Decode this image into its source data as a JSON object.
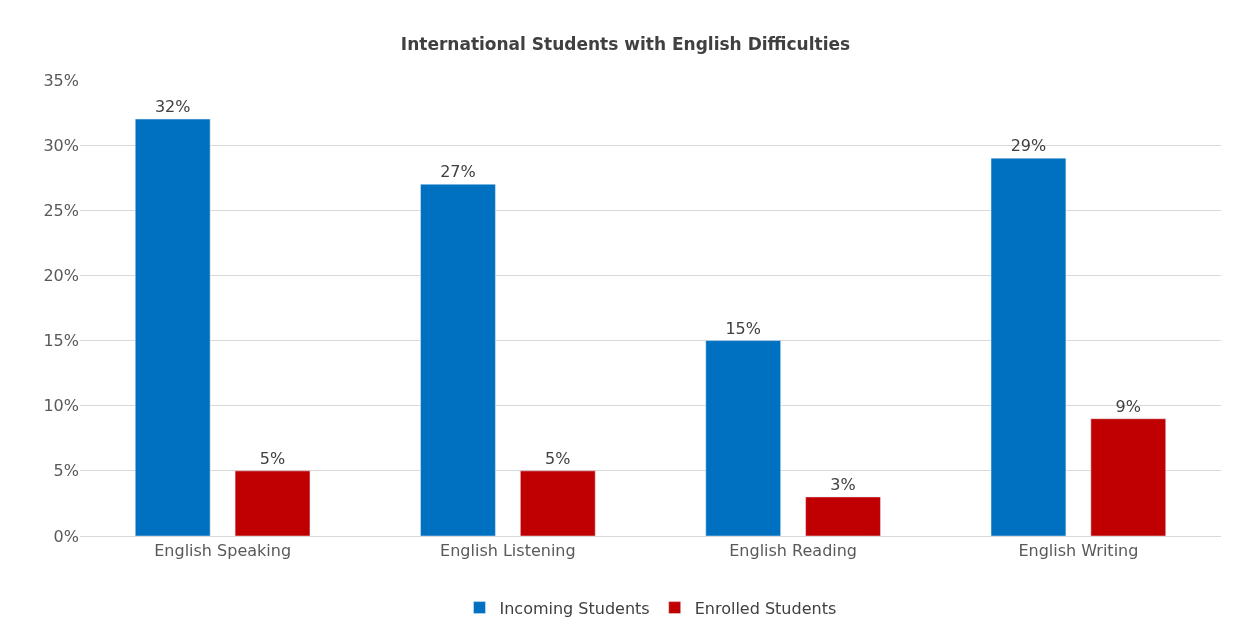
{
  "chart_data": {
    "type": "bar",
    "title": "International Students with English Difficulties",
    "categories": [
      "English Speaking",
      "English Listening",
      "English Reading",
      "English Writing"
    ],
    "series": [
      {
        "name": "Incoming Students",
        "color": "#0070c0",
        "values": [
          32,
          27,
          15,
          29
        ],
        "value_labels": [
          "32%",
          "27%",
          "15%",
          "29%"
        ]
      },
      {
        "name": "Enrolled Students",
        "color": "#c00000",
        "values": [
          5,
          5,
          3,
          9
        ],
        "value_labels": [
          "5%",
          "5%",
          "3%",
          "9%"
        ]
      }
    ],
    "ylim": [
      0,
      35
    ],
    "yticks": [
      {
        "value": 0,
        "label": "0%"
      },
      {
        "value": 5,
        "label": "5%"
      },
      {
        "value": 10,
        "label": "10%"
      },
      {
        "value": 15,
        "label": "15%"
      },
      {
        "value": 20,
        "label": "20%"
      },
      {
        "value": 25,
        "label": "25%"
      },
      {
        "value": 30,
        "label": "30%"
      },
      {
        "value": 35,
        "label": "35%"
      }
    ],
    "grid": "y",
    "legend": "bottom"
  }
}
